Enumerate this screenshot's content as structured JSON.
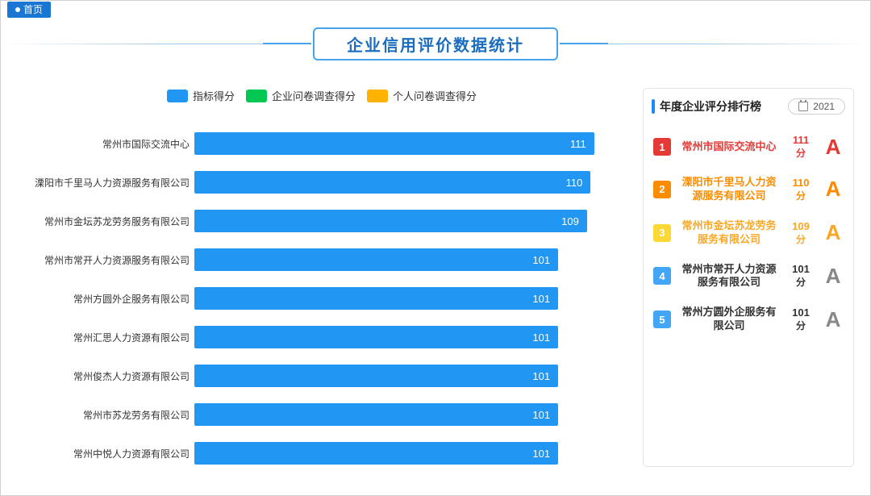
{
  "nav": {
    "home_label": "首页"
  },
  "banner": {
    "title": "企业信用评价数据统计"
  },
  "chart": {
    "type": "bar",
    "orientation": "horizontal",
    "max_value": 120,
    "bar_color": "#2196f3",
    "font_size_label": 12,
    "font_size_value": 13,
    "legend": [
      {
        "label": "指标得分",
        "color": "#2196f3"
      },
      {
        "label": "企业问卷调查得分",
        "color": "#00c853"
      },
      {
        "label": "个人问卷调查得分",
        "color": "#ffb300"
      }
    ],
    "rows": [
      {
        "label": "常州市国际交流中心",
        "value": 111
      },
      {
        "label": "溧阳市千里马人力资源服务有限公司",
        "value": 110
      },
      {
        "label": "常州市金坛苏龙劳务服务有限公司",
        "value": 109
      },
      {
        "label": "常州市常开人力资源服务有限公司",
        "value": 101
      },
      {
        "label": "常州方圆外企服务有限公司",
        "value": 101
      },
      {
        "label": "常州汇思人力资源有限公司",
        "value": 101
      },
      {
        "label": "常州俊杰人力资源有限公司",
        "value": 101
      },
      {
        "label": "常州市苏龙劳务有限公司",
        "value": 101
      },
      {
        "label": "常州中悦人力资源有限公司",
        "value": 101
      }
    ]
  },
  "ranking": {
    "title": "年度企业评分排行榜",
    "year": "2021",
    "score_unit": "分",
    "badge_colors": [
      "#e53935",
      "#fb8c00",
      "#fdd835",
      "#42a5f5",
      "#42a5f5"
    ],
    "text_colors": [
      "#e53935",
      "#fb8c00",
      "#f9a825",
      "#333333",
      "#333333"
    ],
    "grade_colors": [
      "#e53935",
      "#fb8c00",
      "#f9a825",
      "#888888",
      "#888888"
    ],
    "items": [
      {
        "name": "常州市国际交流中心",
        "score": 111,
        "grade": "A"
      },
      {
        "name": "溧阳市千里马人力资源服务有限公司",
        "score": 110,
        "grade": "A"
      },
      {
        "name": "常州市金坛苏龙劳务服务有限公司",
        "score": 109,
        "grade": "A"
      },
      {
        "name": "常州市常开人力资源服务有限公司",
        "score": 101,
        "grade": "A"
      },
      {
        "name": "常州方圆外企服务有限公司",
        "score": 101,
        "grade": "A"
      }
    ]
  }
}
